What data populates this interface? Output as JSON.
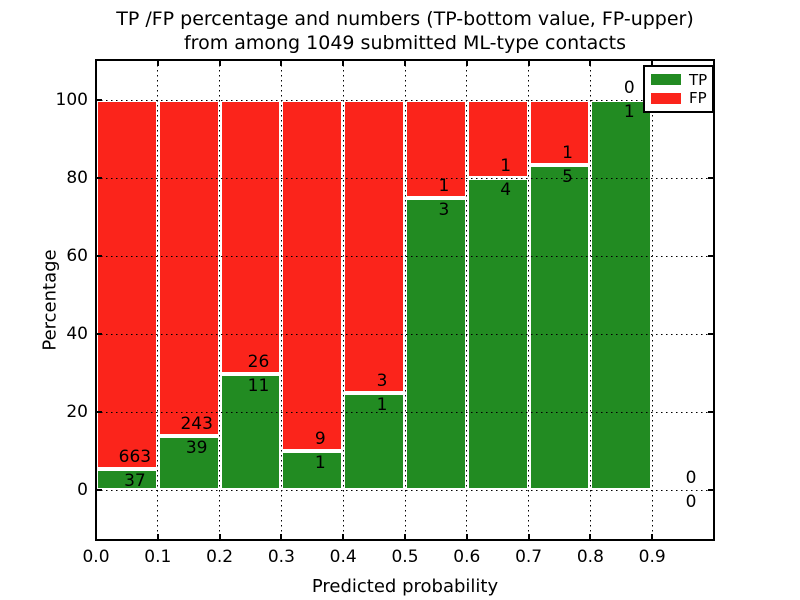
{
  "title": {
    "line1": "TP /FP percentage and numbers (TP-bottom value, FP-upper)",
    "line2": "from among 1049 submitted ML-type contacts"
  },
  "axes": {
    "xlabel": "Predicted probability",
    "ylabel": "Percentage"
  },
  "legend": {
    "position": "upper right",
    "items": [
      {
        "label": "TP",
        "color": "#228B22"
      },
      {
        "label": "FP",
        "color": "#fb241b"
      }
    ]
  },
  "colors": {
    "tp_green": "#228B22",
    "fp_red": "#fb241b",
    "grid": "#000000",
    "frame": "#000000",
    "bar_edge": "#ffffff",
    "background": "#ffffff",
    "text": "#000000"
  },
  "chart_data": {
    "type": "bar",
    "stacked": true,
    "normalized_to_percent": true,
    "title": "TP /FP percentage and numbers (TP-bottom value, FP-upper) from among 1049 submitted ML-type contacts",
    "xlabel": "Predicted probability",
    "ylabel": "Percentage",
    "total_contacts": 1049,
    "bin_edges": [
      0.0,
      0.1,
      0.2,
      0.3,
      0.4,
      0.5,
      0.6,
      0.7,
      0.8,
      0.9,
      1.0
    ],
    "x_tick_labels": [
      "0.0",
      "0.1",
      "0.2",
      "0.3",
      "0.4",
      "0.5",
      "0.6",
      "0.7",
      "0.8",
      "0.9"
    ],
    "y_ticks": [
      0,
      20,
      40,
      60,
      80,
      100
    ],
    "xlim": [
      0.0,
      1.0
    ],
    "ylim": [
      -12.8,
      110.3
    ],
    "grid": "dotted",
    "legend_position": "upper right",
    "series": [
      {
        "name": "TP",
        "color": "#228B22",
        "counts": [
          37,
          39,
          11,
          1,
          1,
          3,
          4,
          5,
          1,
          0
        ]
      },
      {
        "name": "FP",
        "color": "#fb241b",
        "counts": [
          663,
          243,
          26,
          9,
          3,
          1,
          1,
          1,
          0,
          0
        ]
      }
    ],
    "tp_percentage_per_bin": [
      5.29,
      13.83,
      29.73,
      10.0,
      25.0,
      75.0,
      80.0,
      83.33,
      100.0,
      null
    ]
  }
}
